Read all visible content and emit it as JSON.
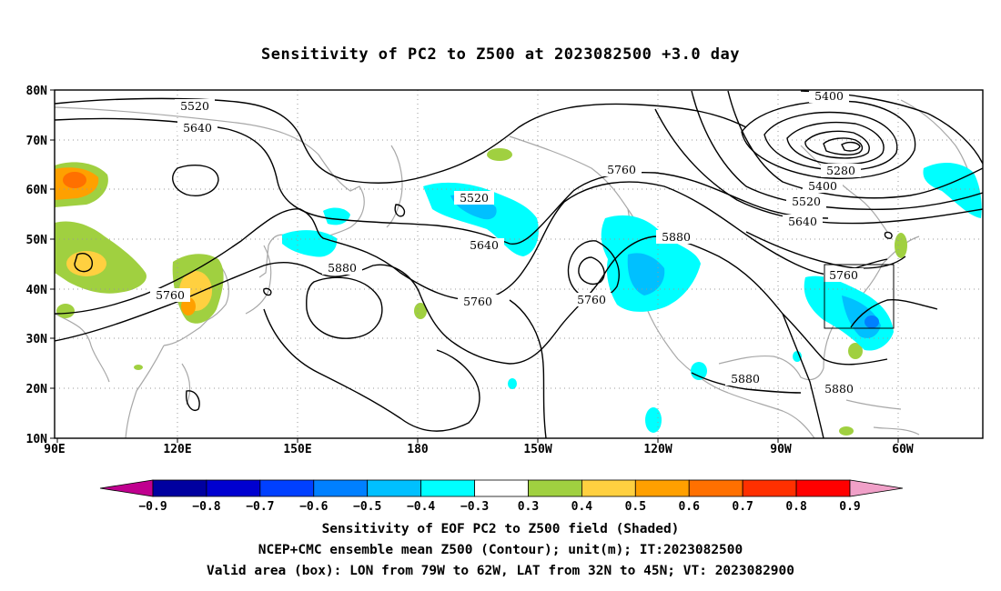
{
  "title": "Sensitivity of PC2 to Z500 at 2023082500 +3.0 day",
  "lat_ticks": [
    "80N",
    "70N",
    "60N",
    "50N",
    "40N",
    "30N",
    "20N",
    "10N"
  ],
  "lon_ticks": [
    "90E",
    "120E",
    "150E",
    "180",
    "150W",
    "120W",
    "90W",
    "60W"
  ],
  "contour_labels": [
    "5520",
    "5640",
    "5400",
    "5280",
    "5400",
    "5520",
    "5640",
    "5520",
    "5640",
    "5760",
    "5760",
    "5880",
    "5760",
    "5760",
    "5880",
    "5760",
    "5880",
    "5880"
  ],
  "colorbar": {
    "labels": [
      "−0.9",
      "−0.8",
      "−0.7",
      "−0.6",
      "−0.5",
      "−0.4",
      "−0.3",
      "0.3",
      "0.4",
      "0.5",
      "0.6",
      "0.7",
      "0.8",
      "0.9"
    ],
    "colors": [
      "#c0008f",
      "#0000a0",
      "#0000d0",
      "#0040ff",
      "#0080ff",
      "#00c0ff",
      "#00ffff",
      "#ffffff",
      "#a0d040",
      "#ffd040",
      "#ffa000",
      "#ff7000",
      "#ff3000",
      "#ff0000",
      "#f0a0c8"
    ]
  },
  "colors": {
    "land_outline": "#a8a8a8",
    "grid": "#999999",
    "contour": "#000000",
    "box": "#000000"
  },
  "footer": [
    "Sensitivity of EOF PC2 to Z500 field (Shaded)",
    "NCEP+CMC ensemble mean Z500 (Contour); unit(m); IT:2023082500",
    "Valid area (box): LON from 79W to 62W, LAT from 32N to 45N; VT: 2023082900"
  ]
}
